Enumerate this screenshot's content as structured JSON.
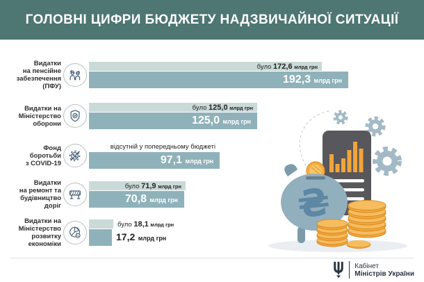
{
  "header": {
    "title": "ГОЛОВНІ ЦИФРИ БЮДЖЕТУ НАДЗВИЧАЙНОЇ СИТУАЦІЇ"
  },
  "chart_data": {
    "type": "bar",
    "title": "ГОЛОВНІ ЦИФРИ БЮДЖЕТУ НАДЗВИЧАЙНОЇ СИТУАЦІЇ",
    "orientation": "horizontal",
    "unit": "млрд грн",
    "value_axis_max": 192.3,
    "series": [
      {
        "name": "було (попередній бюджет)",
        "color": "#c9dad8"
      },
      {
        "name": "бюджет надзвичайної ситуації",
        "color": "#8fb2ba"
      }
    ],
    "colors": {
      "header_bg": "#4e7672",
      "previous_bar": "#c9dad8",
      "current_bar": "#8fb2ba",
      "coin_orange": "#f2a53a",
      "piggy_blue": "#92afbe"
    },
    "rows": [
      {
        "label": "Видатки\nна пенсійне\nзабезпечення\n(ПФУ)",
        "icon": "pensioners-icon",
        "previous_prefix": "було",
        "previous_value": 172.6,
        "previous_display": "172,6",
        "current_value": 192.3,
        "current_display": "192,3",
        "unit": "млрд грн"
      },
      {
        "label": "Видатки на\nМіністерство\nоборони",
        "icon": "defense-shield-icon",
        "previous_prefix": "було",
        "previous_value": 125.0,
        "previous_display": "125,0",
        "current_value": 125.0,
        "current_display": "125,0",
        "unit": "млрд грн"
      },
      {
        "label": "Фонд\nборотьби\nз COVID-19",
        "icon": "covid-virus-icon",
        "previous_note": "відсутній у попередньому бюджеті",
        "current_value": 97.1,
        "current_display": "97,1",
        "unit": "млрд грн"
      },
      {
        "label": "Видатки\nна ремонт та\nбудівництво\nдоріг",
        "icon": "road-barrier-icon",
        "previous_prefix": "було",
        "previous_value": 71.9,
        "previous_display": "71,9",
        "current_value": 70.8,
        "current_display": "70,8",
        "unit": "млрд грн"
      },
      {
        "label": "Видатки на\nМіністерство\nрозвитку\nекономіки",
        "icon": "economy-pie-icon",
        "previous_prefix": "було",
        "previous_value": 18.1,
        "previous_display": "18,1",
        "current_value": 17.2,
        "current_display": "17,2",
        "unit": "млрд грн",
        "values_outside": true
      }
    ]
  },
  "footer": {
    "emblem": "tryzub-icon",
    "org_line1": "Кабінет",
    "org_line2": "Міністрів України"
  }
}
